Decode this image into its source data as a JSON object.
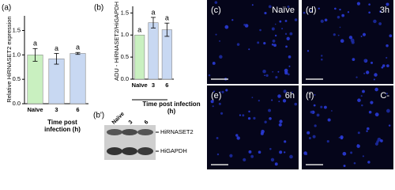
{
  "chart_data": [
    {
      "type": "bar",
      "panel": "(a)",
      "ylabel": "Relative HiRNASET2 expression",
      "xlabel": "Time post infection (h)",
      "categories": [
        "Naïve",
        "3",
        "6"
      ],
      "values": [
        1.0,
        0.92,
        1.03
      ],
      "errors": [
        0.13,
        0.11,
        0.02
      ],
      "colors": [
        "#c9f0c0",
        "#c8d8f2",
        "#c8d8f2"
      ],
      "annotations": [
        "a",
        "a",
        "a"
      ],
      "ylim": [
        0,
        1.8
      ],
      "yticks": [
        {
          "value": 0,
          "label": "0.0"
        },
        0.5,
        {
          "value": 1,
          "label": "1.0"
        },
        1.5
      ]
    },
    {
      "type": "bar",
      "panel": "(b)",
      "ylabel": "ADU - HiRNASET2/HiGAPDH",
      "xlabel": "Time post infection (h)",
      "categories": [
        "Naïve",
        "3",
        "6"
      ],
      "values": [
        1.0,
        1.28,
        1.12
      ],
      "errors": [
        null,
        0.12,
        0.15
      ],
      "colors": [
        "#c9f0c0",
        "#c8d8f2",
        "#c8d8f2"
      ],
      "annotations": [
        "a",
        "a",
        "a"
      ],
      "ylim": [
        0,
        1.65
      ],
      "yticks": [
        {
          "value": 0,
          "label": "0.0"
        },
        0.5,
        {
          "value": 1,
          "label": "1.0"
        },
        1.5
      ]
    }
  ],
  "blot": {
    "panel": "(b')",
    "lanes": [
      "Naïve",
      "3",
      "6"
    ],
    "bands": [
      "HiRNASET2",
      "HiGAPDH"
    ]
  },
  "micrographs": [
    {
      "panel": "(c)",
      "label": "Naïve"
    },
    {
      "panel": "(d)",
      "label": "3h"
    },
    {
      "panel": "(e)",
      "label": "6h"
    },
    {
      "panel": "(f)",
      "label": "C-"
    }
  ]
}
